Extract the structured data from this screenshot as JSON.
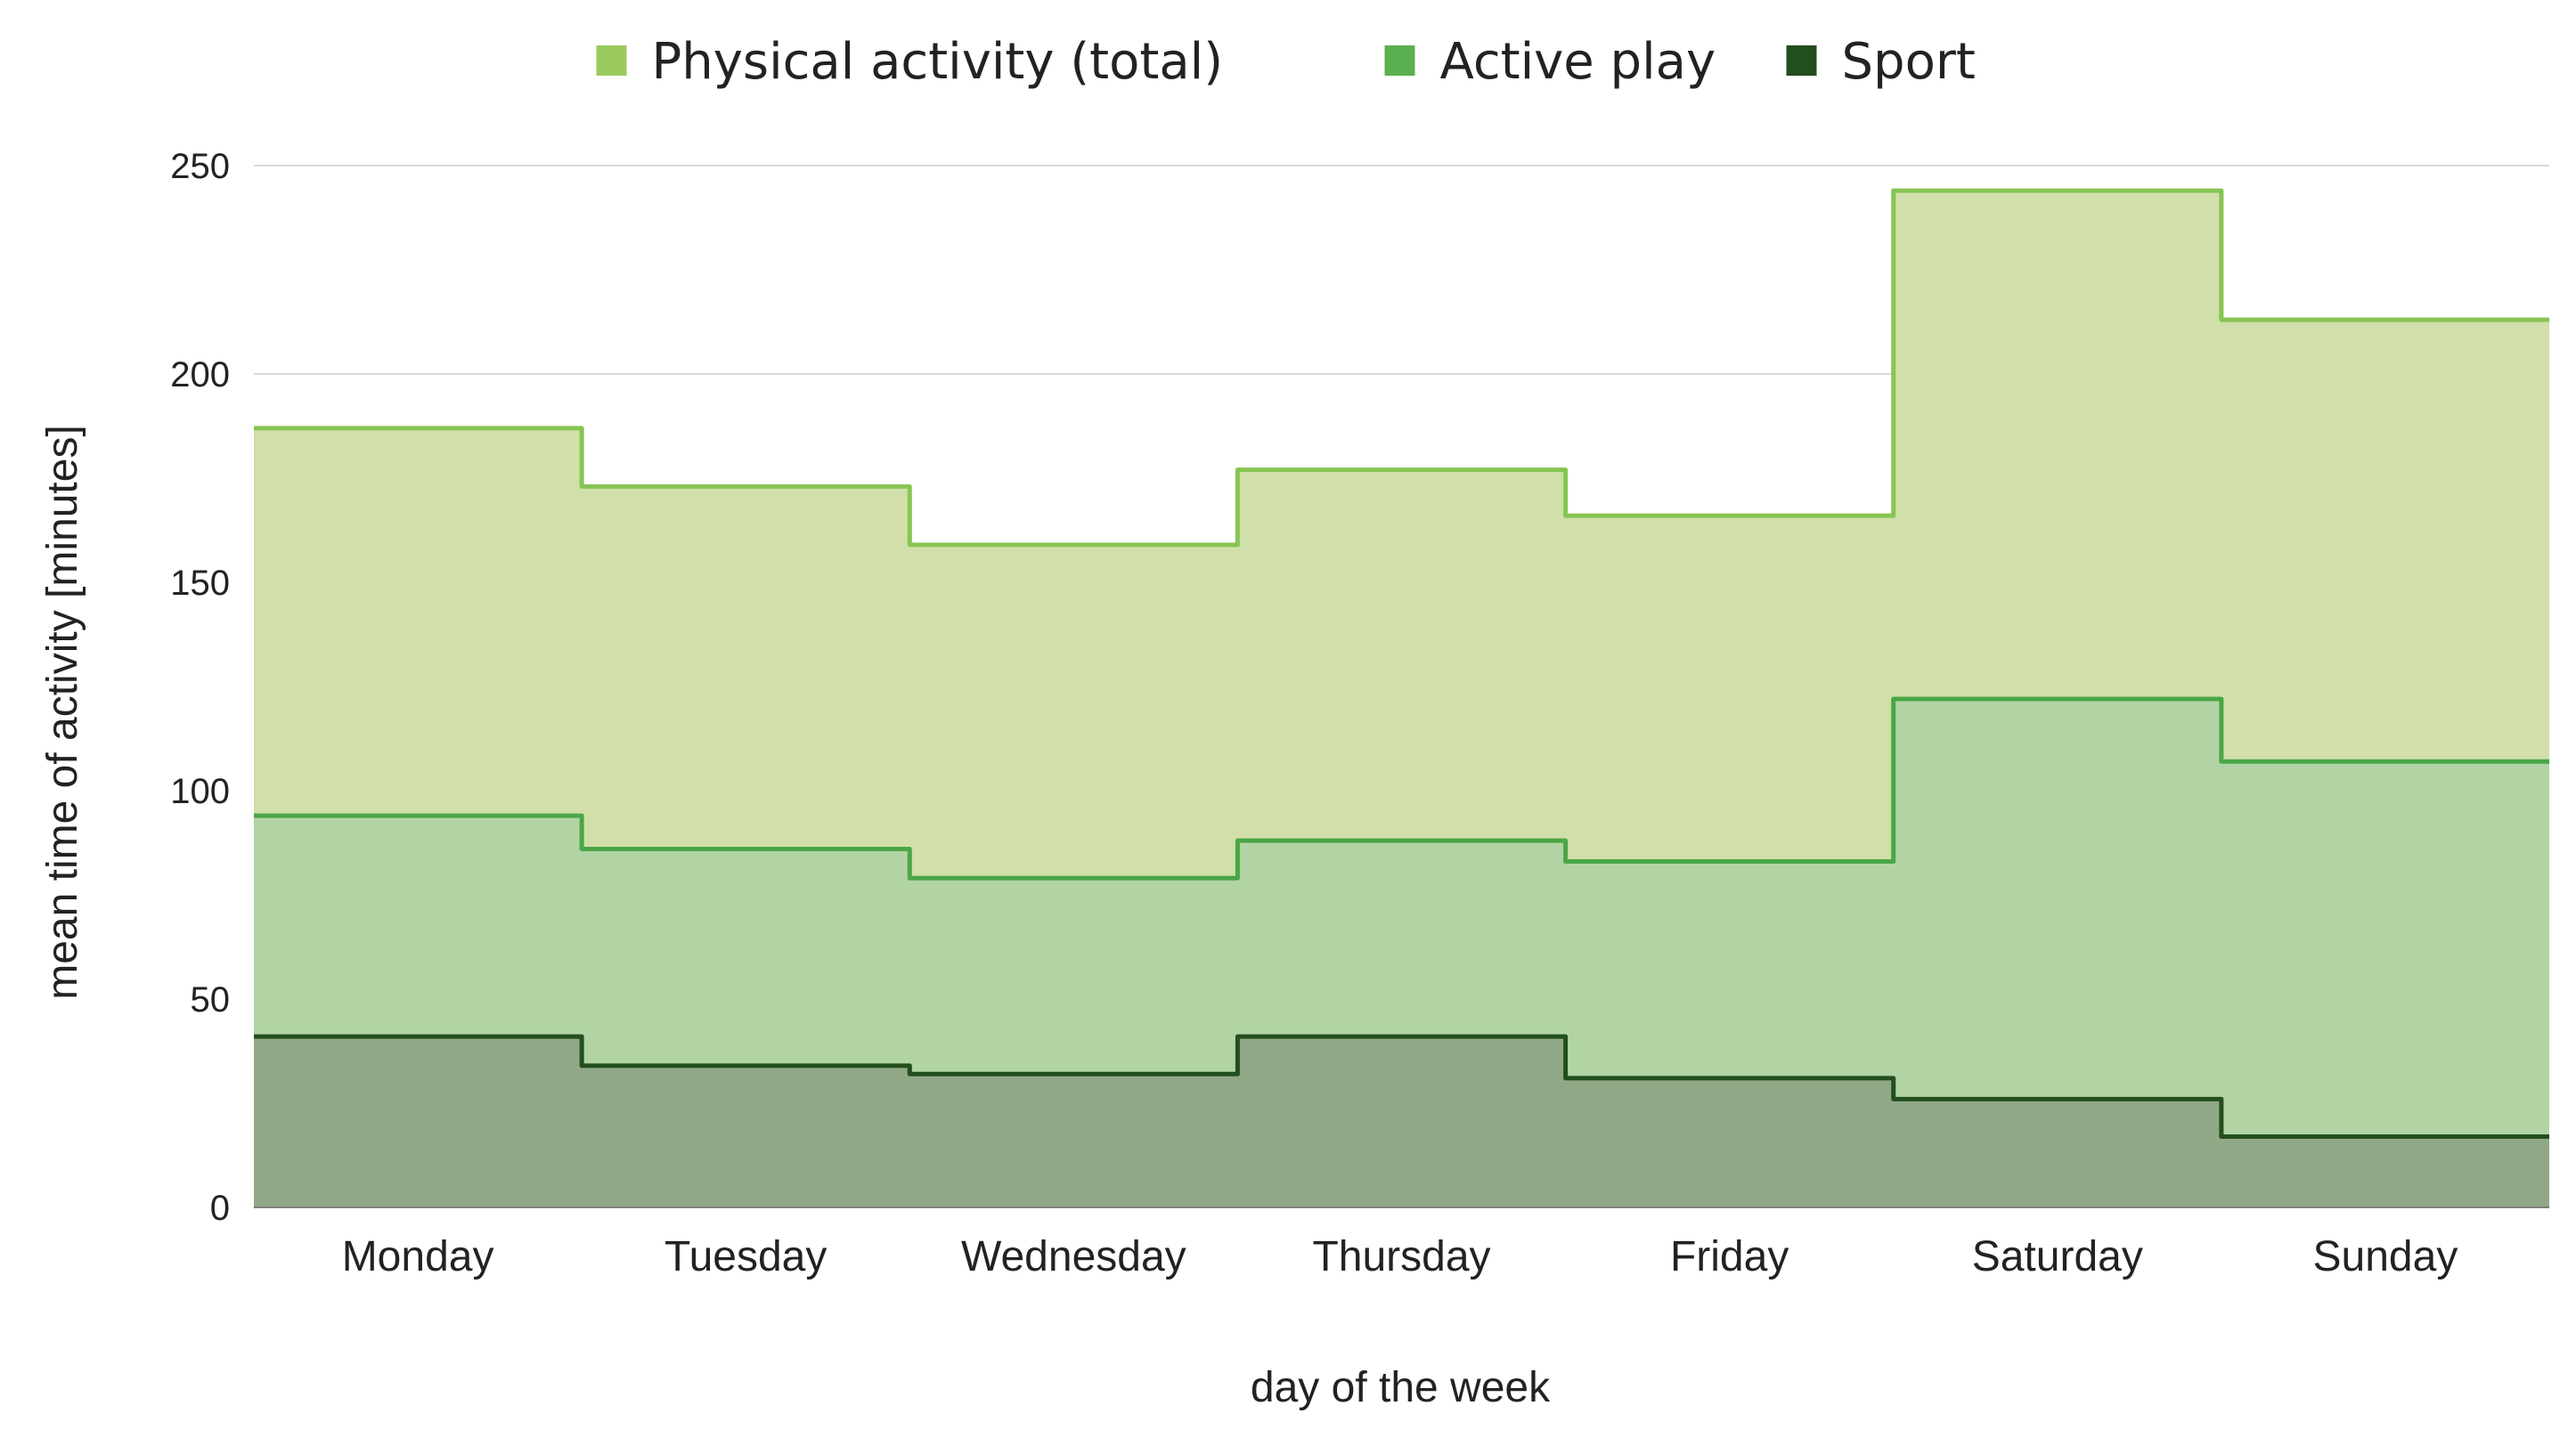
{
  "chart_data": {
    "type": "area",
    "step": true,
    "categories": [
      "Monday",
      "Tuesday",
      "Wednesday",
      "Thursday",
      "Friday",
      "Saturday",
      "Sunday"
    ],
    "series": [
      {
        "name": "Physical activity (total)",
        "values": [
          187,
          173,
          159,
          177,
          166,
          244,
          213
        ],
        "fill": "#d1dfaa",
        "line": "#86c553",
        "swatch": "#9acb5c"
      },
      {
        "name": "Active play",
        "values": [
          94,
          86,
          79,
          88,
          83,
          122,
          107
        ],
        "fill": "#b2d4a4",
        "line": "#4aa646",
        "swatch": "#5bb04f"
      },
      {
        "name": "Sport",
        "values": [
          41,
          34,
          32,
          41,
          31,
          26,
          17
        ],
        "fill": "#91a887",
        "line": "#234e1e",
        "swatch": "#234e1e"
      }
    ],
    "yticks": [
      0,
      50,
      100,
      150,
      200,
      250
    ],
    "ylim": [
      0,
      250
    ],
    "xlabel": "day of the week",
    "ylabel": "mean time of activity [minutes]",
    "grid": true,
    "legend": "top-center"
  }
}
